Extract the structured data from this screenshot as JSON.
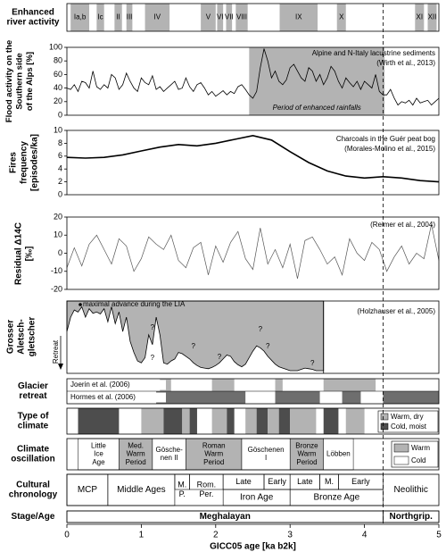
{
  "chart_data": [
    {
      "type": "table",
      "row_label": "Enhanced river activity",
      "periods": [
        {
          "label": "Ia,b",
          "start": 0.05,
          "end": 0.3
        },
        {
          "label": "Ic",
          "start": 0.4,
          "end": 0.5
        },
        {
          "label": "II",
          "start": 0.64,
          "end": 0.74
        },
        {
          "label": "III",
          "start": 0.8,
          "end": 0.88
        },
        {
          "label": "IV",
          "start": 1.05,
          "end": 1.38
        },
        {
          "label": "V",
          "start": 1.8,
          "end": 2.0
        },
        {
          "label": "VI",
          "start": 2.02,
          "end": 2.1
        },
        {
          "label": "VII",
          "start": 2.14,
          "end": 2.22
        },
        {
          "label": "VIII",
          "start": 2.27,
          "end": 2.43
        },
        {
          "label": "IX",
          "start": 2.86,
          "end": 3.37
        },
        {
          "label": "X",
          "start": 3.63,
          "end": 3.75
        },
        {
          "label": "XI",
          "start": 4.68,
          "end": 4.8
        },
        {
          "label": "XII",
          "start": 4.85,
          "end": 4.97
        }
      ]
    },
    {
      "type": "line",
      "ylabel": "Flood activity on the Southern side of the Alps [%]",
      "series_label": "Alpine and N-Italy lacustrine sediments",
      "source": "(Wirth et al., 2013)",
      "ylim": [
        0,
        100
      ],
      "yticks": [
        0,
        20,
        40,
        60,
        80,
        100
      ],
      "shaded": {
        "start": 2.45,
        "end": 4.27,
        "label": "Period of enhanced rainfalls"
      },
      "x": [
        0,
        0.05,
        0.1,
        0.15,
        0.2,
        0.25,
        0.3,
        0.35,
        0.4,
        0.45,
        0.5,
        0.55,
        0.6,
        0.65,
        0.7,
        0.75,
        0.8,
        0.85,
        0.9,
        0.95,
        1.0,
        1.05,
        1.1,
        1.15,
        1.2,
        1.25,
        1.3,
        1.35,
        1.4,
        1.45,
        1.5,
        1.55,
        1.6,
        1.65,
        1.7,
        1.75,
        1.8,
        1.85,
        1.9,
        1.95,
        2.0,
        2.05,
        2.1,
        2.15,
        2.2,
        2.25,
        2.3,
        2.35,
        2.4,
        2.45,
        2.5,
        2.55,
        2.6,
        2.65,
        2.7,
        2.75,
        2.8,
        2.85,
        2.9,
        2.95,
        3.0,
        3.05,
        3.1,
        3.15,
        3.2,
        3.25,
        3.3,
        3.35,
        3.4,
        3.45,
        3.5,
        3.55,
        3.6,
        3.65,
        3.7,
        3.75,
        3.8,
        3.85,
        3.9,
        3.95,
        4.0,
        4.05,
        4.1,
        4.15,
        4.2,
        4.25,
        4.3,
        4.35,
        4.4,
        4.45,
        4.5,
        4.55,
        4.6,
        4.65,
        4.7,
        4.75,
        4.8,
        4.85,
        4.9,
        4.95,
        5.0
      ],
      "y": [
        40,
        38,
        45,
        35,
        50,
        48,
        40,
        65,
        42,
        38,
        45,
        40,
        60,
        55,
        38,
        45,
        62,
        50,
        40,
        35,
        55,
        48,
        45,
        58,
        38,
        42,
        35,
        40,
        45,
        50,
        38,
        40,
        55,
        42,
        35,
        45,
        48,
        40,
        30,
        35,
        28,
        32,
        36,
        30,
        35,
        32,
        42,
        45,
        38,
        30,
        25,
        35,
        70,
        98,
        80,
        55,
        65,
        50,
        45,
        52,
        70,
        75,
        65,
        55,
        50,
        70,
        65,
        50,
        60,
        45,
        55,
        72,
        65,
        50,
        40,
        55,
        48,
        42,
        50,
        38,
        50,
        45,
        40,
        60,
        35,
        30,
        30,
        38,
        25,
        15,
        20,
        18,
        22,
        15,
        25,
        18,
        20,
        22,
        15,
        20,
        25
      ]
    },
    {
      "type": "line",
      "ylabel": "Fires frequency [episodes/ka]",
      "series_label": "Charcoals in the Guér peat bog",
      "source": "(Morales-Molino et al., 2015)",
      "ylim": [
        0,
        10
      ],
      "yticks": [
        0,
        2,
        4,
        6,
        8,
        10
      ],
      "x": [
        0,
        0.25,
        0.5,
        0.75,
        1.0,
        1.25,
        1.5,
        1.75,
        2.0,
        2.25,
        2.5,
        2.75,
        3.0,
        3.25,
        3.5,
        3.75,
        4.0,
        4.25,
        4.5,
        4.75,
        5.0
      ],
      "y": [
        5.8,
        5.7,
        5.8,
        6.2,
        6.8,
        7.4,
        7.8,
        7.6,
        8.0,
        8.6,
        9.2,
        8.5,
        6.7,
        5.0,
        3.7,
        2.9,
        2.6,
        2.8,
        2.6,
        2.2,
        2.0
      ]
    },
    {
      "type": "line",
      "ylabel": "Residual Δ14C [‰]",
      "source": "(Reimer et al., 2004)",
      "ylim": [
        -20,
        20
      ],
      "yticks": [
        -20,
        -10,
        0,
        10,
        20
      ],
      "x": [
        0,
        0.1,
        0.2,
        0.3,
        0.4,
        0.5,
        0.6,
        0.7,
        0.8,
        0.9,
        1.0,
        1.1,
        1.2,
        1.3,
        1.4,
        1.5,
        1.6,
        1.7,
        1.8,
        1.9,
        2.0,
        2.1,
        2.2,
        2.3,
        2.4,
        2.5,
        2.6,
        2.7,
        2.8,
        2.9,
        3.0,
        3.1,
        3.2,
        3.3,
        3.4,
        3.5,
        3.6,
        3.7,
        3.8,
        3.9,
        4.0,
        4.1,
        4.2,
        4.3,
        4.4,
        4.5,
        4.6,
        4.7,
        4.8,
        4.9,
        5.0
      ],
      "y": [
        -8,
        3,
        -7,
        5,
        10,
        2,
        -6,
        8,
        4,
        -10,
        -3,
        9,
        5,
        2,
        10,
        -4,
        -8,
        3,
        6,
        -12,
        4,
        -5,
        6,
        12,
        -3,
        -9,
        14,
        -6,
        2,
        -8,
        5,
        -14,
        7,
        9,
        2,
        -6,
        -2,
        -12,
        8,
        0,
        -4,
        6,
        2,
        -10,
        -2,
        4,
        -6,
        0,
        -3,
        16,
        -4
      ]
    },
    {
      "type": "area",
      "ylabel": "Grosser Aletschgletscher",
      "y_arrow_label": "Retreat",
      "source": "(Holzhauser et al., 2005)",
      "annotation": "maximal advance during the LIA",
      "question_marks": [
        "?",
        "?",
        "?",
        "?",
        "?",
        "?",
        "?"
      ],
      "x": [
        0,
        0.05,
        0.1,
        0.15,
        0.2,
        0.25,
        0.3,
        0.35,
        0.4,
        0.45,
        0.5,
        0.55,
        0.6,
        0.65,
        0.7,
        0.75,
        0.8,
        0.85,
        0.9,
        0.95,
        1.0,
        1.05,
        1.1,
        1.15,
        1.2,
        1.25,
        1.3,
        1.35,
        1.4,
        1.45,
        1.5,
        1.55,
        1.6,
        1.65,
        1.7,
        1.75,
        1.8,
        1.85,
        1.9,
        1.95,
        2.0,
        2.05,
        2.1,
        2.15,
        2.2,
        2.25,
        2.3,
        2.35,
        2.4,
        2.45,
        2.5,
        2.55,
        2.6,
        2.65,
        2.7,
        2.75,
        2.8,
        2.85,
        2.9,
        2.95,
        3.0,
        3.05,
        3.1,
        3.15,
        3.2,
        3.25,
        3.3,
        3.35,
        3.4,
        3.45
      ],
      "y": [
        0.6,
        0.82,
        0.93,
        0.9,
        0.98,
        0.82,
        0.95,
        0.88,
        0.9,
        0.87,
        0.95,
        0.75,
        0.98,
        0.72,
        0.9,
        0.6,
        0.82,
        0.45,
        0.28,
        0.15,
        0.12,
        0.2,
        0.55,
        0.4,
        0.82,
        0.55,
        0.12,
        0.1,
        0.15,
        0.18,
        0.28,
        0.26,
        0.22,
        0.18,
        0.12,
        0.08,
        0.05,
        0.04,
        0.03,
        0.05,
        0.08,
        0.12,
        0.18,
        0.24,
        0.22,
        0.14,
        0.09,
        0.06,
        0.1,
        0.2,
        0.3,
        0.38,
        0.35,
        0.3,
        0.22,
        0.16,
        0.1,
        0.06,
        0.04,
        0.02,
        0.0,
        0.0,
        0.0,
        0.02,
        0.04,
        0.03,
        0.02,
        0.0,
        0.0,
        0.0
      ]
    },
    {
      "type": "table",
      "row_label": "Glacier retreat",
      "rows": [
        {
          "label": "Joerin et al. (2006)",
          "periods": [
            [
              1.25,
              1.4
            ],
            [
              1.95,
              2.25
            ],
            [
              2.8,
              2.9
            ],
            [
              3.45,
              4.15
            ]
          ]
        },
        {
          "label": "Hormes et al. (2006)",
          "periods": [
            [
              1.2,
              2.4
            ],
            [
              2.8,
              3.4
            ],
            [
              3.7,
              3.95
            ],
            [
              4.25,
              5.0
            ]
          ]
        }
      ]
    },
    {
      "type": "table",
      "row_label": "Type of climate",
      "legend": [
        "Warm, dry",
        "Cold, moist"
      ],
      "periods": [
        {
          "start": 0.15,
          "end": 0.7,
          "type": "Cold, moist"
        },
        {
          "start": 1.0,
          "end": 1.3,
          "type": "Warm, dry"
        },
        {
          "start": 1.3,
          "end": 1.55,
          "type": "Cold, moist"
        },
        {
          "start": 1.55,
          "end": 1.65,
          "type": "Warm, dry"
        },
        {
          "start": 1.65,
          "end": 1.75,
          "type": "Cold, moist"
        },
        {
          "start": 1.95,
          "end": 2.15,
          "type": "Warm, dry"
        },
        {
          "start": 2.15,
          "end": 2.25,
          "type": "Cold, moist"
        },
        {
          "start": 2.4,
          "end": 2.55,
          "type": "Warm, dry"
        },
        {
          "start": 2.55,
          "end": 2.7,
          "type": "Cold, moist"
        },
        {
          "start": 2.7,
          "end": 2.85,
          "type": "Warm, dry"
        },
        {
          "start": 2.85,
          "end": 3.0,
          "type": "Cold, moist"
        },
        {
          "start": 3.0,
          "end": 3.35,
          "type": "Warm, dry"
        },
        {
          "start": 3.45,
          "end": 3.65,
          "type": "Cold, moist"
        },
        {
          "start": 3.75,
          "end": 4.0,
          "type": "Warm, dry"
        }
      ]
    },
    {
      "type": "table",
      "row_label": "Climate oscillation",
      "legend": [
        "Warm",
        "Cold"
      ],
      "periods": [
        {
          "label": "Little Ice Age",
          "start": 0.15,
          "end": 0.7,
          "type": "Cold"
        },
        {
          "label": "Med. Warm Period",
          "start": 0.7,
          "end": 1.15,
          "type": "Warm"
        },
        {
          "label": "Gösche-nen II",
          "start": 1.15,
          "end": 1.6,
          "type": "Cold"
        },
        {
          "label": "Roman Warm Period",
          "start": 1.6,
          "end": 2.35,
          "type": "Warm"
        },
        {
          "label": "Göschenen I",
          "start": 2.35,
          "end": 3.0,
          "type": "Cold"
        },
        {
          "label": "Bronze Warm Period",
          "start": 3.0,
          "end": 3.45,
          "type": "Warm"
        },
        {
          "label": "Löbben",
          "start": 3.45,
          "end": 3.85,
          "type": "Cold"
        }
      ]
    },
    {
      "type": "table",
      "row_label": "Cultural chronology",
      "upper": [
        {
          "label": "MCP",
          "start": 0.0,
          "end": 0.55
        },
        {
          "label": "Middle Ages",
          "start": 0.55,
          "end": 1.45
        },
        {
          "label": "M. P.",
          "start": 1.45,
          "end": 1.65
        },
        {
          "label": "Rom. Per.",
          "start": 1.65,
          "end": 2.1
        },
        {
          "label": "Late",
          "start": 2.1,
          "end": 2.65
        },
        {
          "label": "Early",
          "start": 2.65,
          "end": 3.0
        },
        {
          "label": "Late",
          "start": 3.0,
          "end": 3.4
        },
        {
          "label": "M.",
          "start": 3.4,
          "end": 3.65
        },
        {
          "label": "Early",
          "start": 3.65,
          "end": 4.25
        }
      ],
      "lower": [
        {
          "label": "Iron Age",
          "start": 2.1,
          "end": 3.0
        },
        {
          "label": "Bronze Age",
          "start": 3.0,
          "end": 4.25
        }
      ],
      "full": [
        {
          "label": "Neolithic",
          "start": 4.25,
          "end": 5.0
        }
      ]
    },
    {
      "type": "table",
      "row_label": "Stage/Age",
      "periods": [
        {
          "label": "Meghalayan",
          "start": 0.0,
          "end": 4.25
        },
        {
          "label": "Northgrip.",
          "start": 4.25,
          "end": 5.0
        }
      ]
    },
    {
      "type": "axis",
      "xlabel": "GICC05 age [ka b2k]",
      "xlim": [
        0,
        5
      ],
      "xticks": [
        0,
        1,
        2,
        3,
        4,
        5
      ],
      "boundary": 4.25
    }
  ]
}
